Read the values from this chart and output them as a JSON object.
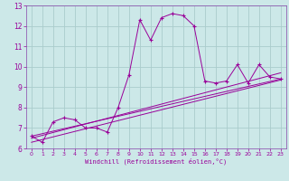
{
  "xlabel": "Windchill (Refroidissement éolien,°C)",
  "bg_color": "#cce8e8",
  "grid_color": "#aacccc",
  "line_color": "#990099",
  "spine_color": "#8844aa",
  "xlim": [
    -0.5,
    23.5
  ],
  "ylim": [
    6,
    13
  ],
  "xticks": [
    0,
    1,
    2,
    3,
    4,
    5,
    6,
    7,
    8,
    9,
    10,
    11,
    12,
    13,
    14,
    15,
    16,
    17,
    18,
    19,
    20,
    21,
    22,
    23
  ],
  "yticks": [
    6,
    7,
    8,
    9,
    10,
    11,
    12,
    13
  ],
  "series1_x": [
    0,
    1,
    2,
    3,
    4,
    5,
    6,
    7,
    8,
    9,
    10,
    11,
    12,
    13,
    14,
    15,
    16,
    17,
    18,
    19,
    20,
    21,
    22,
    23
  ],
  "series1_y": [
    6.6,
    6.3,
    7.3,
    7.5,
    7.4,
    7.0,
    7.0,
    6.8,
    8.0,
    9.6,
    12.3,
    11.3,
    12.4,
    12.6,
    12.5,
    12.0,
    9.3,
    9.2,
    9.3,
    10.1,
    9.2,
    10.1,
    9.5,
    9.4
  ],
  "series2_x": [
    0,
    23
  ],
  "series2_y": [
    6.6,
    9.4
  ],
  "series3_x": [
    0,
    23
  ],
  "series3_y": [
    6.5,
    9.7
  ],
  "series4_x": [
    0,
    23
  ],
  "series4_y": [
    6.3,
    9.35
  ]
}
